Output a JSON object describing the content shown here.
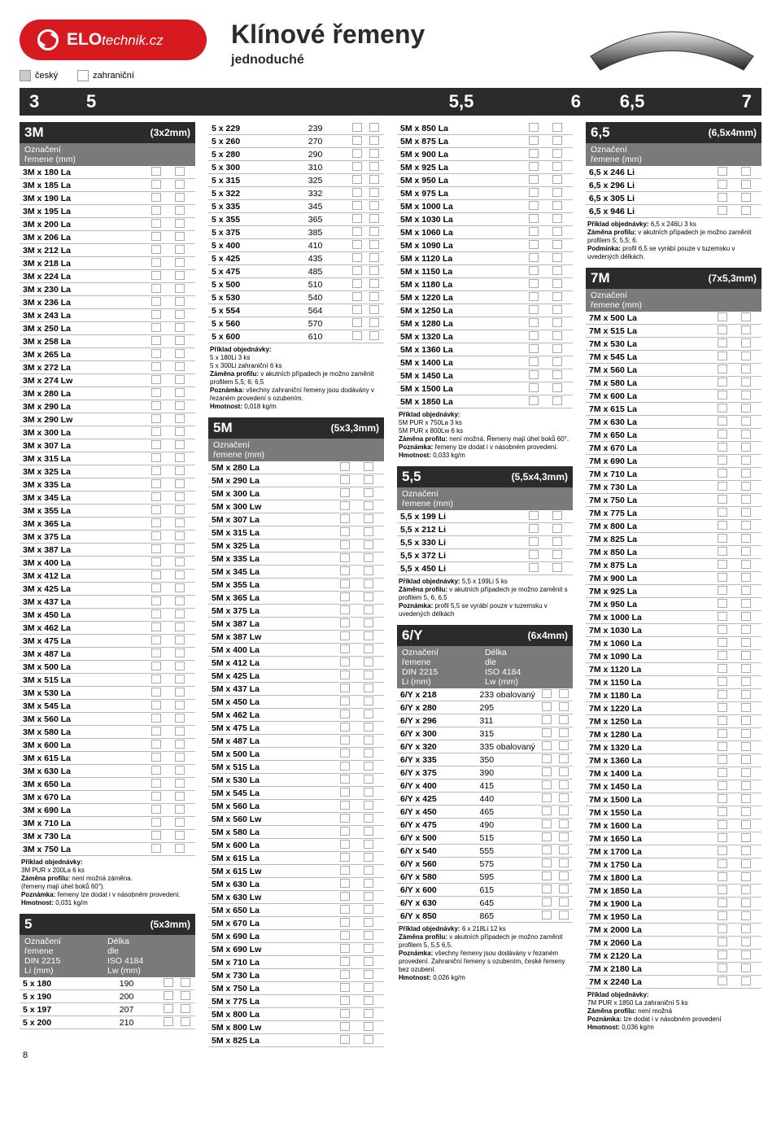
{
  "logo_main": "ELO",
  "logo_sub": "technik.cz",
  "legend_cz": "český",
  "legend_fo": "zahraniční",
  "title": "Klínové řemeny",
  "subtitle": "jednoduché",
  "ruler": [
    "3",
    "5",
    "5,5",
    "6",
    "6,5",
    "7"
  ],
  "page_no": "8",
  "s3M": {
    "head": "3M",
    "dim": "(3x2mm)",
    "subhead": "Označení\nřemene (mm)",
    "rows": [
      "3M x 180 La",
      "3M x 185 La",
      "3M x 190 La",
      "3M x 195 La",
      "3M x 200 La",
      "3M x 206 La",
      "3M x 212 La",
      "3M x 218 La",
      "3M x 224 La",
      "3M x 230 La",
      "3M x 236 La",
      "3M x 243 La",
      "3M x 250 La",
      "3M x 258 La",
      "3M x 265 La",
      "3M x 272 La",
      "3M x 274 Lw",
      "3M x 280 La",
      "3M x 290 La",
      "3M x 290 Lw",
      "3M x 300 La",
      "3M x 307 La",
      "3M x 315 La",
      "3M x 325 La",
      "3M x 335 La",
      "3M x 345 La",
      "3M x 355 La",
      "3M x 365 La",
      "3M x 375 La",
      "3M x 387 La",
      "3M x 400 La",
      "3M x 412 La",
      "3M x 425 La",
      "3M x 437 La",
      "3M x 450 La",
      "3M x 462 La",
      "3M x 475 La",
      "3M x 487 La",
      "3M x 500 La",
      "3M x 515 La",
      "3M x 530 La",
      "3M x 545 La",
      "3M x 560 La",
      "3M x 580 La",
      "3M x 600 La",
      "3M x 615 La",
      "3M x 630 La",
      "3M x 650 La",
      "3M x 670 La",
      "3M x 690 La",
      "3M x 710 La",
      "3M x 730 La",
      "3M x 750 La"
    ],
    "note": "<b>Příklad objednávky:</b><br>3M PUR x 200La  6 ks<br><b>Záměna profilu:</b> není možná záměna.<br>(řemeny mají úhel boků 60°).<br><b>Poznámka:</b> řemeny lze dodat i v násobném provedení.<br><b>Hmotnost:</b> 0,031 kg/m"
  },
  "s5": {
    "head": "5",
    "dim": "(5x3mm)",
    "sub_left": "Označení\nřemene\nDIN 2215\nLi (mm)",
    "sub_right": "Délka\ndle\nISO 4184\nLw (mm)",
    "rows": [
      [
        "5  x  180",
        "190"
      ],
      [
        "5  x  190",
        "200"
      ],
      [
        "5  x  197",
        "207"
      ],
      [
        "5  x  200",
        "210"
      ],
      [
        "5  x  229",
        "239"
      ],
      [
        "5  x  260",
        "270"
      ],
      [
        "5  x  280",
        "290"
      ],
      [
        "5  x  300",
        "310"
      ],
      [
        "5  x  315",
        "325"
      ],
      [
        "5  x  322",
        "332"
      ],
      [
        "5  x  335",
        "345"
      ],
      [
        "5  x  355",
        "365"
      ],
      [
        "5  x  375",
        "385"
      ],
      [
        "5  x  400",
        "410"
      ],
      [
        "5  x  425",
        "435"
      ],
      [
        "5  x  475",
        "485"
      ],
      [
        "5  x  500",
        "510"
      ],
      [
        "5  x  530",
        "540"
      ],
      [
        "5  x  554",
        "564"
      ],
      [
        "5  x  560",
        "570"
      ],
      [
        "5  x  600",
        "610"
      ]
    ],
    "note": "<b>Příklad objednávky:</b><br>5 x 180Li  3 ks<br>5 x 300Li zahraniční 6 ks<br><b>Záměna profilu:</b> v akutních případech je možno zaměnit profilem 5,5; 6; 6,5<br><b>Poznámka:</b> všechny zahraniční řemeny jsou dodávány v řezaném provedení s ozubením.<br><b>Hmotnost:</b> 0,018 kg/m"
  },
  "s5M": {
    "head": "5M",
    "dim": "(5x3,3mm)",
    "subhead": "Označení\nřemene (mm)",
    "rows": [
      "5M x 280 La",
      "5M x 290 La",
      "5M x 300 La",
      "5M x 300 Lw",
      "5M x 307 La",
      "5M x 315 La",
      "5M x 325 La",
      "5M x 335 La",
      "5M x 345 La",
      "5M x 355 La",
      "5M x 365 La",
      "5M x 375 La",
      "5M x 387 La",
      "5M x 387 Lw",
      "5M x 400 La",
      "5M x 412 La",
      "5M x 425 La",
      "5M x 437 La",
      "5M x 450 La",
      "5M x 462 La",
      "5M x 475 La",
      "5M x 487 La",
      "5M x 500 La",
      "5M x 515 La",
      "5M x 530 La",
      "5M x 545 La",
      "5M x 560 La",
      "5M x 560 Lw",
      "5M x 580 La",
      "5M x 600 La",
      "5M x 615 La",
      "5M x 615 Lw",
      "5M x 630 La",
      "5M x 630 Lw",
      "5M x 650 La",
      "5M x 670 La",
      "5M x 690 La",
      "5M x 690 Lw",
      "5M x 710 La",
      "5M x 730 La",
      "5M x 750 La",
      "5M x 775 La",
      "5M x 800 La",
      "5M x 800 Lw",
      "5M x 825 La",
      "5M x 850   La",
      "5M x 875   La",
      "5M x 900   La",
      "5M x 925   La",
      "5M x 950   La",
      "5M x 975   La",
      "5M x 1000 La",
      "5M x 1030 La",
      "5M x 1060 La",
      "5M x 1090 La",
      "5M x 1120 La",
      "5M x 1150 La",
      "5M x 1180 La",
      "5M x 1220 La",
      "5M x 1250 La",
      "5M x 1280 La",
      "5M x 1320 La",
      "5M x 1360 La",
      "5M x 1400 La",
      "5M x 1450 La",
      "5M x 1500 La",
      "5M x 1850 La"
    ],
    "note": "<b>Příklad objednávky:</b><br>5M PUR x 750La  3 ks<br>5M PUR x 800Lw  6 ks<br><b>Záměna profilu:</b> není možná. Řemeny mají úhel boků 60°.<br><b>Poznámka:</b> řemeny lze dodat i v násobném provedení.<br><b>Hmotnost:</b> 0,033 kg/m"
  },
  "s55": {
    "head": "5,5",
    "dim": "(5,5x4,3mm)",
    "subhead": "Označení\nřemene (mm)",
    "rows": [
      "5,5 x 199 Li",
      "5,5 x 212 Li",
      "5,5 x 330 Li",
      "5,5 x 372 Li",
      "5,5 x 450 Li"
    ],
    "note": "<b>Příklad objednávky:</b> 5,5 x 199Li   5 ks<br><b>Záměna profilu:</b> v akutních případech je možno zaměnit s profilem 5, 6, 6,5<br><b>Poznámka:</b> profil 5,5 se vyrábí pouze v tuzemsku v uvedených délkách"
  },
  "s6Y": {
    "head": "6/Y",
    "dim": "(6x4mm)",
    "sub_left": "Označení\nřemene\nDIN 2215\nLi (mm)",
    "sub_right": "Délka\ndle\nISO 4184\nLw (mm)",
    "rows": [
      [
        "6/Y x 218",
        "233  obalovaný"
      ],
      [
        "6/Y x 280",
        "295"
      ],
      [
        "6/Y x 296",
        "311"
      ],
      [
        "6/Y x 300",
        "315"
      ],
      [
        "6/Y x 320",
        "335  obalovaný"
      ],
      [
        "6/Y x 335",
        "350"
      ],
      [
        "6/Y x 375",
        "390"
      ],
      [
        "6/Y x 400",
        "415"
      ],
      [
        "6/Y x 425",
        "440"
      ],
      [
        "6/Y x 450",
        "465"
      ],
      [
        "6/Y x 475",
        "490"
      ],
      [
        "6/Y x 500",
        "515"
      ],
      [
        "6/Y x 540",
        "555"
      ],
      [
        "6/Y x 560",
        "575"
      ],
      [
        "6/Y x 580",
        "595"
      ],
      [
        "6/Y x 600",
        "615"
      ],
      [
        "6/Y x 630",
        "645"
      ],
      [
        "6/Y x 850",
        "865"
      ]
    ],
    "note": "<b>Příklad objednávky:</b> 6 x 218Li   12 ks<br><b>Záměna profilu:</b> v akutních případech je možno zaměnit profilem 5, 5,5 6,5.<br><b>Poznámka:</b> všechny řemeny jsou dodávány v řezaném provedení. Zahraniční řemeny s ozubením, české řemeny bez ozubení.<br><b>Hmotnost:</b> 0,026 kg/m"
  },
  "s65": {
    "head": "6,5",
    "dim": "(6,5x4mm)",
    "subhead": "Označení\nřemene (mm)",
    "rows": [
      "6,5 x 246  Li",
      "6,5 x 296  Li",
      "6,5 x 305  Li",
      "6,5 x 946  Li"
    ],
    "note": "<b>Příklad objednávky:</b> 6,5 x 246Li   3 ks<br><b>Záměna profilu:</b> v akutních případech je možno zaměnit profilem 5; 5,5; 6.<br><b>Podmínka:</b> profil 6,5 se vyrábí pouze v tuzemsku v uvedených délkách."
  },
  "s7M": {
    "head": "7M",
    "dim": "(7x5,3mm)",
    "subhead": "Označení\nřemene (mm)",
    "rows": [
      "7M x 500   La",
      "7M x 515   La",
      "7M x 530   La",
      "7M x 545   La",
      "7M x 560   La",
      "7M x 580   La",
      "7M x 600   La",
      "7M x 615   La",
      "7M x 630   La",
      "7M x 650   La",
      "7M x 670   La",
      "7M x 690   La",
      "7M x 710   La",
      "7M x 730   La",
      "7M x 750   La",
      "7M x 775   La",
      "7M x 800   La",
      "7M x 825   La",
      "7M x 850   La",
      "7M x 875   La",
      "7M x 900   La",
      "7M x 925   La",
      "7M x 950   La",
      "7M x 1000 La",
      "7M x 1030 La",
      "7M x 1060 La",
      "7M x 1090 La",
      "7M x 1120 La",
      "7M x 1150 La",
      "7M x 1180 La",
      "7M x 1220 La",
      "7M x 1250 La",
      "7M x 1280 La",
      "7M x 1320 La",
      "7M x 1360 La",
      "7M x 1400 La",
      "7M x 1450 La",
      "7M x 1500 La",
      "7M x 1550 La",
      "7M x 1600 La",
      "7M x 1650 La",
      "7M x 1700 La",
      "7M x 1750 La",
      "7M x 1800 La",
      "7M x 1850 La",
      "7M x 1900 La",
      "7M x 1950 La",
      "7M x 2000 La",
      "7M x 2060 La",
      "7M x 2120 La",
      "7M x 2180 La",
      "7M x 2240 La"
    ],
    "note": "<b>Příklad objednávky:</b><br>7M PUR x 1850 La zahraniční   5 ks<br><b>Záměna profilu:</b> není možná<br><b>Poznámka:</b> lze dodat i v násobném provedení<br><b>Hmotnost:</b> 0,036 kg/m"
  }
}
